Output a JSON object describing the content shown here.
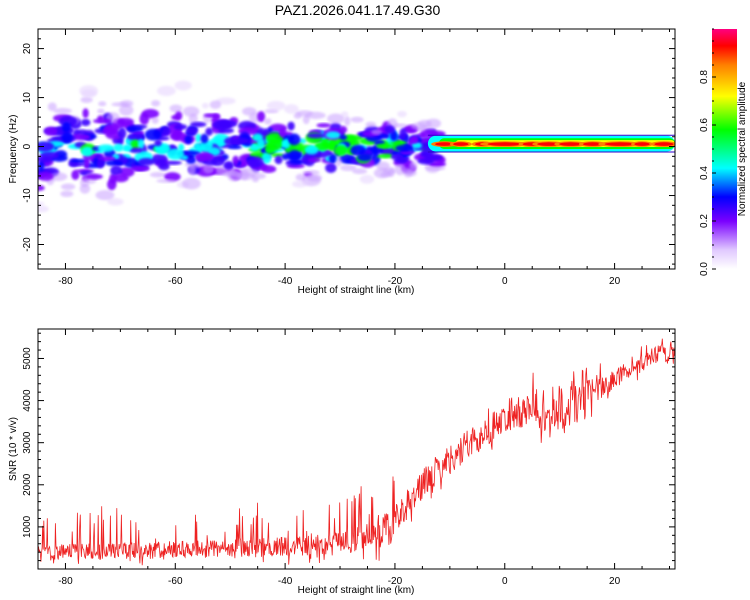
{
  "title": "PAZ1.2026.041.17.49.G30",
  "chart_data": [
    {
      "type": "heatmap",
      "xlabel": "Height of straight line (km)",
      "ylabel": "Frequency (Hz)",
      "xlim": [
        -85,
        31
      ],
      "ylim": [
        -25,
        24
      ],
      "xticks": [
        -80,
        -60,
        -40,
        -20,
        0,
        20
      ],
      "xtick_labels": [
        "-80",
        "-60",
        "-40",
        "-20",
        "0",
        "20"
      ],
      "yticks": [
        -20,
        -10,
        0,
        10,
        20
      ],
      "ytick_labels": [
        "-20",
        "-10",
        "0",
        "10",
        "20"
      ],
      "colorbar": {
        "label": "Normalized spectral amplitude",
        "range": [
          0,
          1
        ],
        "ticks": [
          0.0,
          0.2,
          0.4,
          0.6,
          0.8
        ],
        "tick_labels": [
          "0.0",
          "0.2",
          "0.4",
          "0.6",
          "0.8"
        ],
        "colors": [
          "#ffffff",
          "#8000ff",
          "#0000ff",
          "#00ffff",
          "#00ff00",
          "#ffff00",
          "#ff8000",
          "#ff0000",
          "#ff0080"
        ]
      }
    },
    {
      "type": "line",
      "xlabel": "Height of straight line (km)",
      "ylabel": "SNR (10 * v/v)",
      "xlim": [
        -85,
        31
      ],
      "ylim": [
        0,
        5700
      ],
      "xticks": [
        -80,
        -60,
        -40,
        -20,
        0,
        20
      ],
      "xtick_labels": [
        "-80",
        "-60",
        "-40",
        "-20",
        "0",
        "20"
      ],
      "yticks": [
        1000,
        2000,
        3000,
        4000,
        5000
      ],
      "ytick_labels": [
        "1000",
        "2000",
        "3000",
        "4000",
        "5000"
      ],
      "series": [
        {
          "name": "SNR",
          "color": "#ee2222",
          "trend_x": [
            -85,
            -70,
            -50,
            -40,
            -30,
            -25,
            -22,
            -20,
            -18,
            -15,
            -12,
            -8,
            -5,
            -2,
            0,
            3,
            5,
            8,
            10,
            12,
            15,
            18,
            20,
            22,
            25,
            28,
            31
          ],
          "trend_y": [
            400,
            430,
            480,
            520,
            620,
            750,
            900,
            1200,
            1500,
            2000,
            2400,
            2800,
            3100,
            3400,
            3600,
            3700,
            3800,
            3700,
            3800,
            3900,
            4200,
            4300,
            4500,
            4700,
            4900,
            5100,
            5200
          ]
        }
      ]
    }
  ]
}
